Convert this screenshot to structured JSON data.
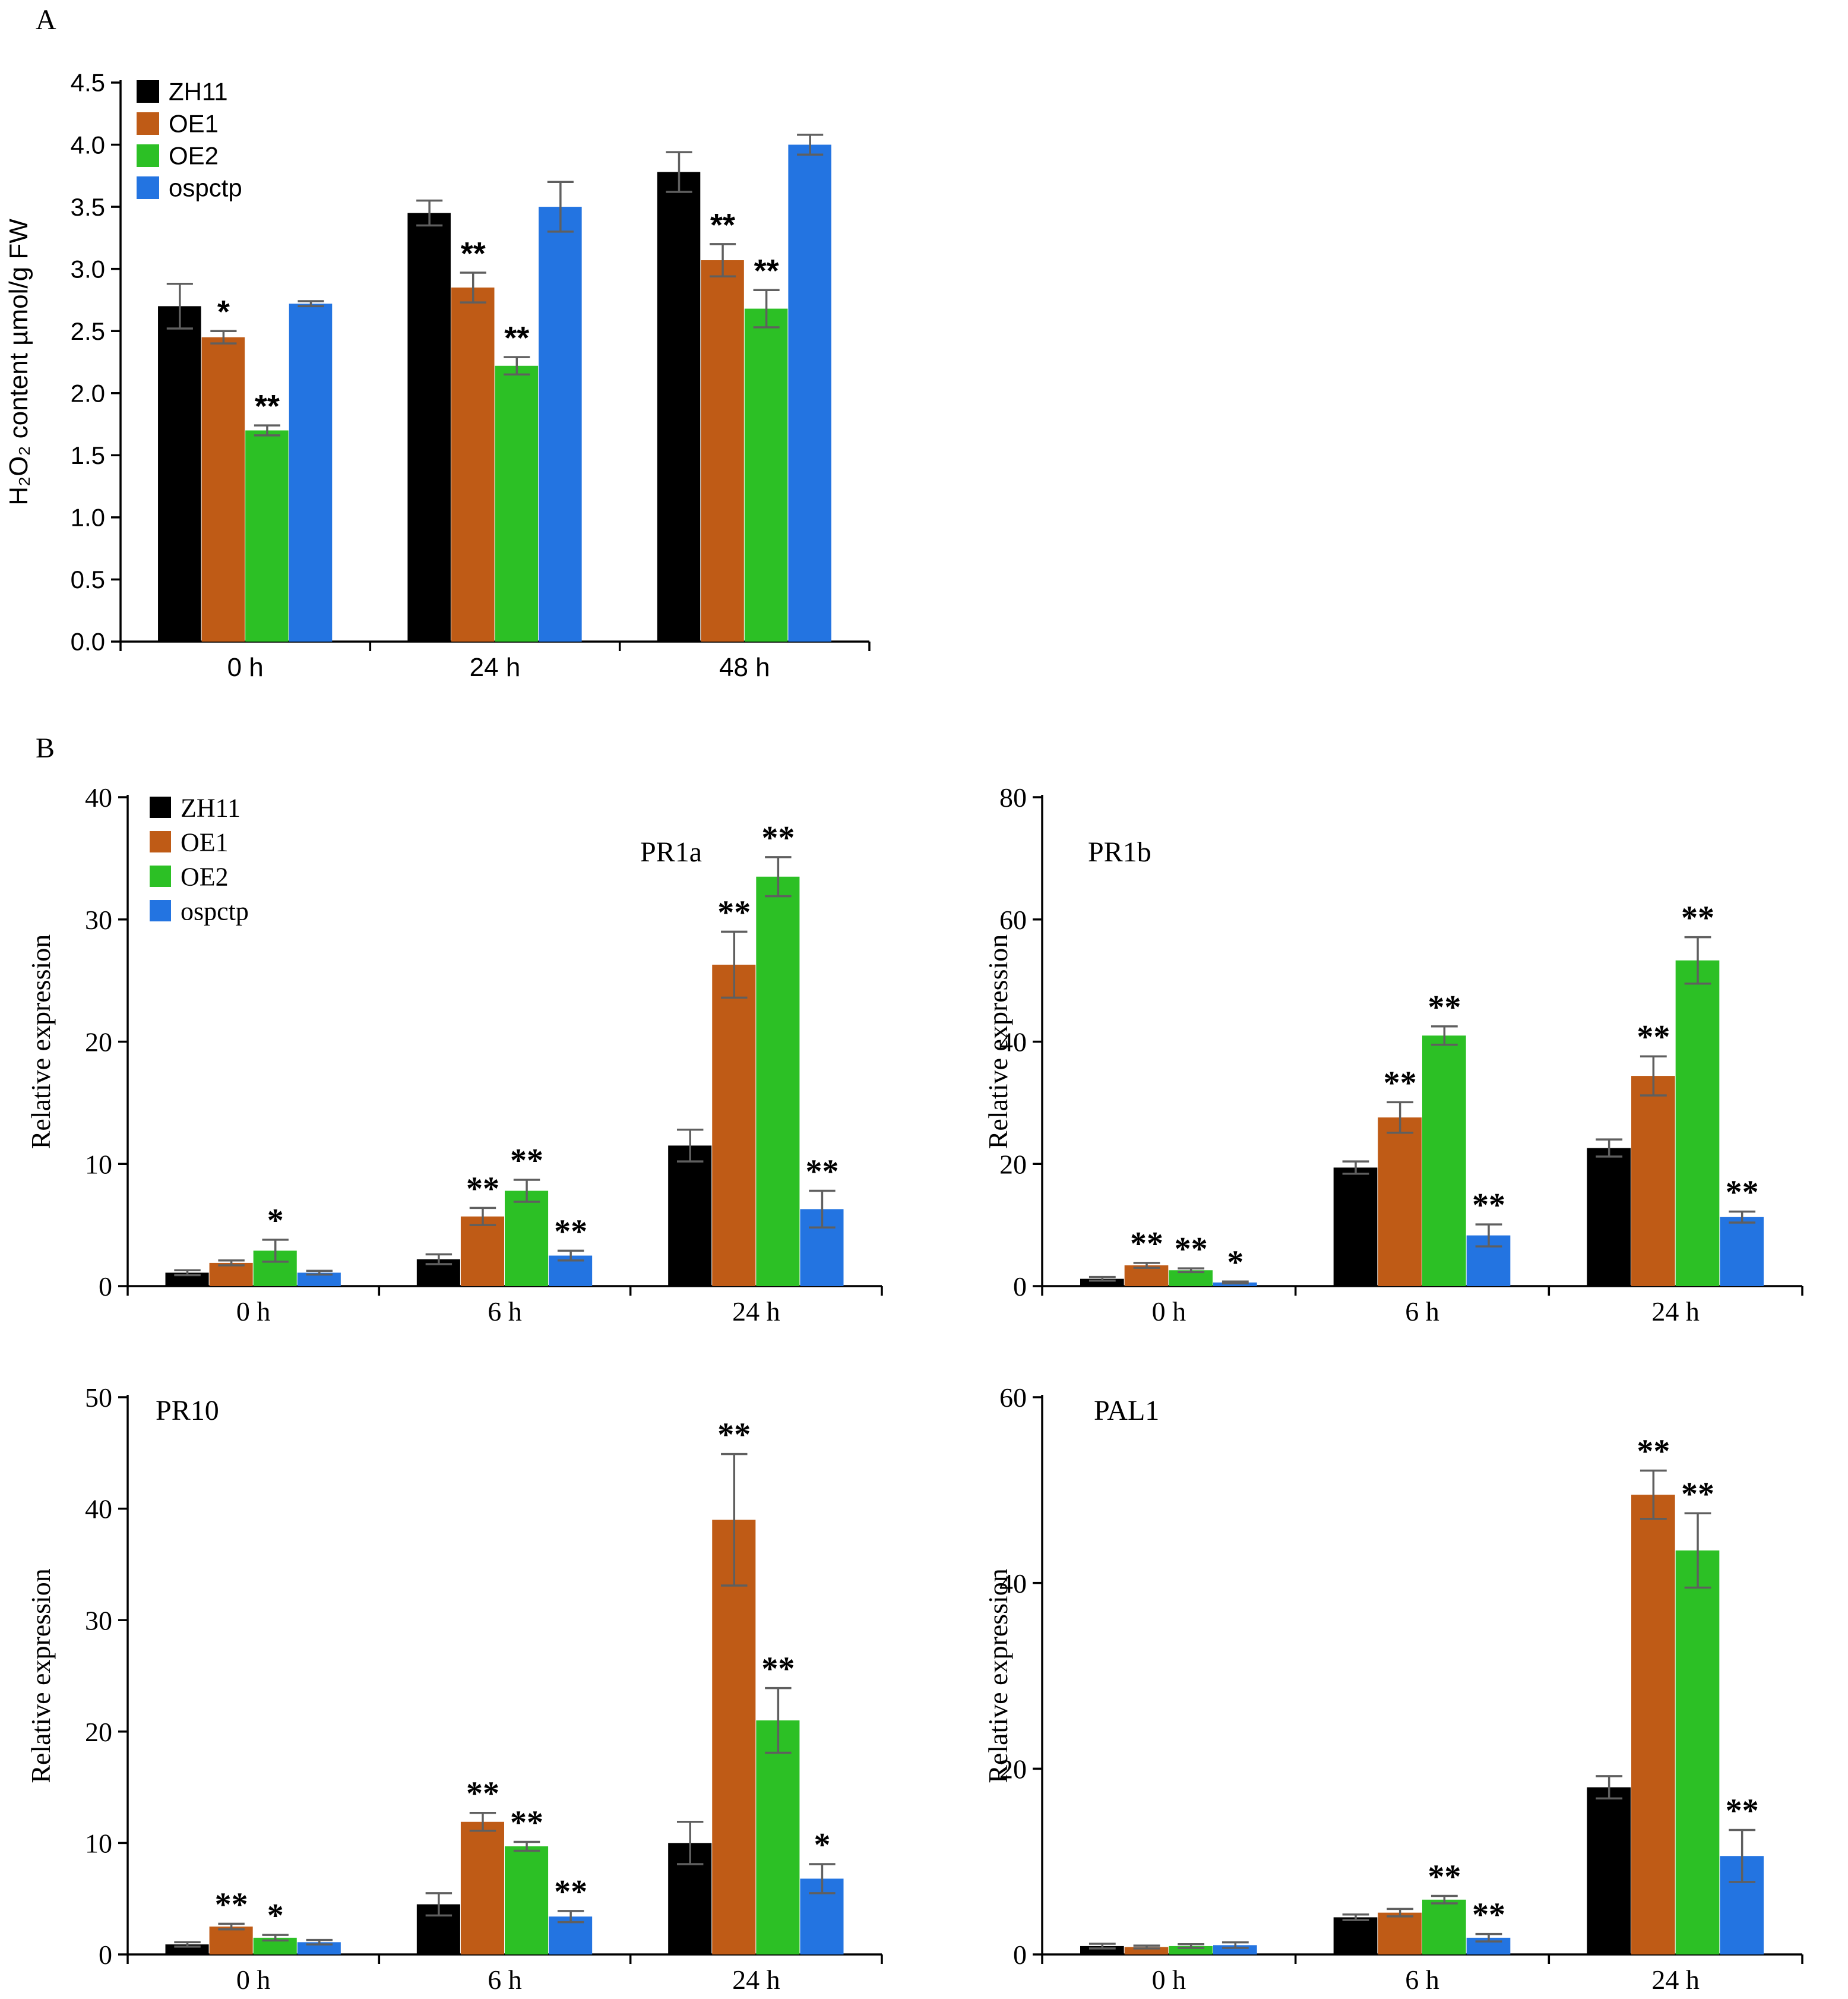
{
  "panels": {
    "a_label": "A",
    "b_label": "B"
  },
  "chart_data": [
    {
      "id": "h2o2",
      "type": "bar",
      "title": "",
      "ylabel": "H₂O₂ content µmol/g FW",
      "xlabel": "",
      "categories": [
        "0 h",
        "24 h",
        "48 h"
      ],
      "ylim": [
        0,
        4.5
      ],
      "yticks": [
        0,
        0.5,
        1.0,
        1.5,
        2.0,
        2.5,
        3.0,
        3.5,
        4.0,
        4.5
      ],
      "ytick_labels": [
        "0.0",
        "0.5",
        "1.0",
        "1.5",
        "2.0",
        "2.5",
        "3.0",
        "3.5",
        "4.0",
        "4.5"
      ],
      "grid": false,
      "legend_position": "top-left-inside",
      "series": [
        {
          "name": "ZH11",
          "color": "#000000",
          "values": [
            2.7,
            3.45,
            3.78
          ],
          "errors": [
            0.18,
            0.1,
            0.16
          ],
          "sig": [
            "",
            "",
            ""
          ]
        },
        {
          "name": "OE1",
          "color": "#bf5b16",
          "values": [
            2.45,
            2.85,
            3.07
          ],
          "errors": [
            0.05,
            0.12,
            0.13
          ],
          "sig": [
            "*",
            "**",
            "**"
          ]
        },
        {
          "name": "OE2",
          "color": "#2cc025",
          "values": [
            1.7,
            2.22,
            2.68
          ],
          "errors": [
            0.04,
            0.07,
            0.15
          ],
          "sig": [
            "**",
            "**",
            "**"
          ]
        },
        {
          "name": "ospctp",
          "color": "#2374e1",
          "values": [
            2.72,
            3.5,
            4.0
          ],
          "errors": [
            0.02,
            0.2,
            0.08
          ],
          "sig": [
            "",
            "",
            ""
          ]
        }
      ]
    },
    {
      "id": "pr1a",
      "type": "bar",
      "title": "PR1a",
      "ylabel": "Relative expression",
      "xlabel": "",
      "categories": [
        "0 h",
        "6 h",
        "24 h"
      ],
      "ylim": [
        0,
        40
      ],
      "yticks": [
        0,
        10,
        20,
        30,
        40
      ],
      "ytick_labels": [
        "0",
        "10",
        "20",
        "30",
        "40"
      ],
      "grid": false,
      "legend_position": "top-left-inside",
      "series": [
        {
          "name": "ZH11",
          "color": "#000000",
          "values": [
            1.1,
            2.2,
            11.5
          ],
          "errors": [
            0.2,
            0.4,
            1.3
          ],
          "sig": [
            "",
            "",
            ""
          ]
        },
        {
          "name": "OE1",
          "color": "#bf5b16",
          "values": [
            1.9,
            5.7,
            26.3
          ],
          "errors": [
            0.2,
            0.7,
            2.7
          ],
          "sig": [
            "",
            "**",
            "**"
          ]
        },
        {
          "name": "OE2",
          "color": "#2cc025",
          "values": [
            2.9,
            7.8,
            33.5
          ],
          "errors": [
            0.9,
            0.9,
            1.6
          ],
          "sig": [
            "*",
            "**",
            "**"
          ]
        },
        {
          "name": "ospctp",
          "color": "#2374e1",
          "values": [
            1.1,
            2.5,
            6.3
          ],
          "errors": [
            0.15,
            0.4,
            1.5
          ],
          "sig": [
            "",
            "**",
            "**"
          ]
        }
      ]
    },
    {
      "id": "pr1b",
      "type": "bar",
      "title": "PR1b",
      "ylabel": "Relative expression",
      "xlabel": "",
      "categories": [
        "0 h",
        "6 h",
        "24 h"
      ],
      "ylim": [
        0,
        80
      ],
      "yticks": [
        0,
        20,
        40,
        60,
        80
      ],
      "ytick_labels": [
        "0",
        "20",
        "40",
        "60",
        "80"
      ],
      "grid": false,
      "legend_position": "none",
      "series": [
        {
          "name": "ZH11",
          "color": "#000000",
          "values": [
            1.2,
            19.4,
            22.6
          ],
          "errors": [
            0.3,
            1.0,
            1.4
          ],
          "sig": [
            "",
            "",
            ""
          ]
        },
        {
          "name": "OE1",
          "color": "#bf5b16",
          "values": [
            3.4,
            27.6,
            34.4
          ],
          "errors": [
            0.4,
            2.5,
            3.2
          ],
          "sig": [
            "**",
            "**",
            "**"
          ]
        },
        {
          "name": "OE2",
          "color": "#2cc025",
          "values": [
            2.6,
            41.0,
            53.3
          ],
          "errors": [
            0.3,
            1.5,
            3.8
          ],
          "sig": [
            "**",
            "**",
            "**"
          ]
        },
        {
          "name": "ospctp",
          "color": "#2374e1",
          "values": [
            0.6,
            8.3,
            11.3
          ],
          "errors": [
            0.15,
            1.8,
            0.9
          ],
          "sig": [
            "*",
            "**",
            "**"
          ]
        }
      ]
    },
    {
      "id": "pr10",
      "type": "bar",
      "title": "PR10",
      "ylabel": "Relative expression",
      "xlabel": "",
      "categories": [
        "0 h",
        "6 h",
        "24 h"
      ],
      "ylim": [
        0,
        50
      ],
      "yticks": [
        0,
        10,
        20,
        30,
        40,
        50
      ],
      "ytick_labels": [
        "0",
        "10",
        "20",
        "30",
        "40",
        "50"
      ],
      "grid": false,
      "legend_position": "none",
      "series": [
        {
          "name": "ZH11",
          "color": "#000000",
          "values": [
            0.9,
            4.5,
            10.0
          ],
          "errors": [
            0.2,
            1.0,
            1.9
          ],
          "sig": [
            "",
            "",
            ""
          ]
        },
        {
          "name": "OE1",
          "color": "#bf5b16",
          "values": [
            2.5,
            11.9,
            39.0
          ],
          "errors": [
            0.25,
            0.8,
            5.9
          ],
          "sig": [
            "**",
            "**",
            "**"
          ]
        },
        {
          "name": "OE2",
          "color": "#2cc025",
          "values": [
            1.5,
            9.7,
            21.0
          ],
          "errors": [
            0.25,
            0.4,
            2.9
          ],
          "sig": [
            "*",
            "**",
            "**"
          ]
        },
        {
          "name": "ospctp",
          "color": "#2374e1",
          "values": [
            1.1,
            3.4,
            6.8
          ],
          "errors": [
            0.2,
            0.5,
            1.3
          ],
          "sig": [
            "",
            "**",
            "*"
          ]
        }
      ]
    },
    {
      "id": "pal1",
      "type": "bar",
      "title": "PAL1",
      "ylabel": "Relative expression",
      "xlabel": "",
      "categories": [
        "0 h",
        "6 h",
        "24 h"
      ],
      "ylim": [
        0,
        60
      ],
      "yticks": [
        0,
        20,
        40,
        60
      ],
      "ytick_labels": [
        "0",
        "20",
        "40",
        "60"
      ],
      "grid": false,
      "legend_position": "none",
      "series": [
        {
          "name": "ZH11",
          "color": "#000000",
          "values": [
            0.9,
            4.0,
            18.0
          ],
          "errors": [
            0.25,
            0.3,
            1.2
          ],
          "sig": [
            "",
            "",
            ""
          ]
        },
        {
          "name": "OE1",
          "color": "#bf5b16",
          "values": [
            0.8,
            4.5,
            49.5
          ],
          "errors": [
            0.15,
            0.4,
            2.6
          ],
          "sig": [
            "",
            "",
            "**"
          ]
        },
        {
          "name": "OE2",
          "color": "#2cc025",
          "values": [
            0.9,
            5.9,
            43.5
          ],
          "errors": [
            0.2,
            0.4,
            4.0
          ],
          "sig": [
            "",
            "**",
            "**"
          ]
        },
        {
          "name": "ospctp",
          "color": "#2374e1",
          "values": [
            1.0,
            1.8,
            10.6
          ],
          "errors": [
            0.3,
            0.4,
            2.8
          ],
          "sig": [
            "",
            "**",
            "**"
          ]
        }
      ]
    }
  ],
  "style": {
    "error_bar_color": "#5f5f5f",
    "axis_color": "#000000",
    "sig_star_color": "#000000"
  }
}
